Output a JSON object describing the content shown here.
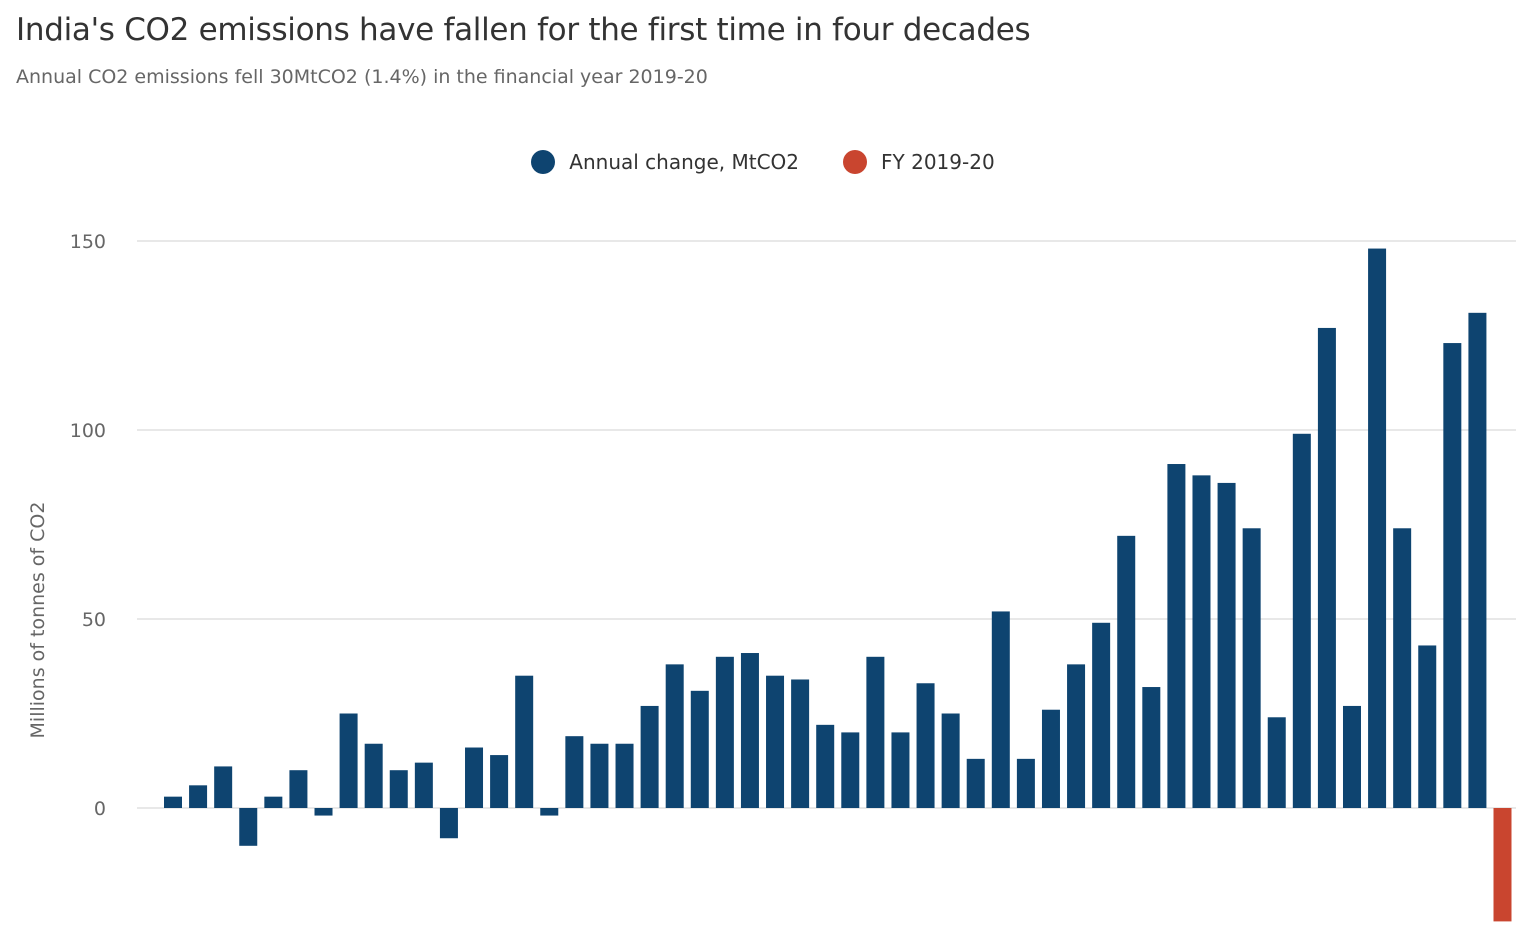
{
  "title": "India's CO2 emissions have fallen for the first time in four decades",
  "subtitle": "Annual CO2 emissions fell 30MtCO2 (1.4%) in the financial year 2019-20",
  "legend": {
    "items": [
      {
        "label": "Annual change, MtCO2",
        "color": "#0e4470"
      },
      {
        "label": "FY 2019-20",
        "color": "#c9452f"
      }
    ]
  },
  "chart_data": {
    "type": "bar",
    "title": "India's CO2 emissions have fallen for the first time in four decades",
    "subtitle": "Annual CO2 emissions fell 30MtCO2 (1.4%) in the financial year 2019-20",
    "ylabel": "Millions of tonnes of CO2",
    "xlabel": "",
    "ylim": [
      -30,
      150
    ],
    "yticks": [
      0,
      50,
      100,
      150
    ],
    "grid": true,
    "legend_position": "top-center",
    "series": [
      {
        "name": "Annual change, MtCO2",
        "color": "#0e4470",
        "values": [
          3,
          6,
          11,
          -10,
          3,
          10,
          -2,
          25,
          17,
          10,
          12,
          -8,
          16,
          14,
          35,
          -2,
          19,
          17,
          17,
          27,
          38,
          31,
          40,
          41,
          35,
          34,
          22,
          20,
          40,
          20,
          33,
          25,
          13,
          52,
          13,
          26,
          38,
          49,
          72,
          32,
          91,
          88,
          86,
          74,
          24,
          99,
          127,
          27,
          148,
          74,
          43,
          123,
          131,
          null
        ]
      },
      {
        "name": "FY 2019-20",
        "color": "#c9452f",
        "values": [
          null,
          null,
          null,
          null,
          null,
          null,
          null,
          null,
          null,
          null,
          null,
          null,
          null,
          null,
          null,
          null,
          null,
          null,
          null,
          null,
          null,
          null,
          null,
          null,
          null,
          null,
          null,
          null,
          null,
          null,
          null,
          null,
          null,
          null,
          null,
          null,
          null,
          null,
          null,
          null,
          null,
          null,
          null,
          null,
          null,
          null,
          null,
          null,
          null,
          null,
          null,
          null,
          null,
          -30
        ]
      }
    ]
  }
}
